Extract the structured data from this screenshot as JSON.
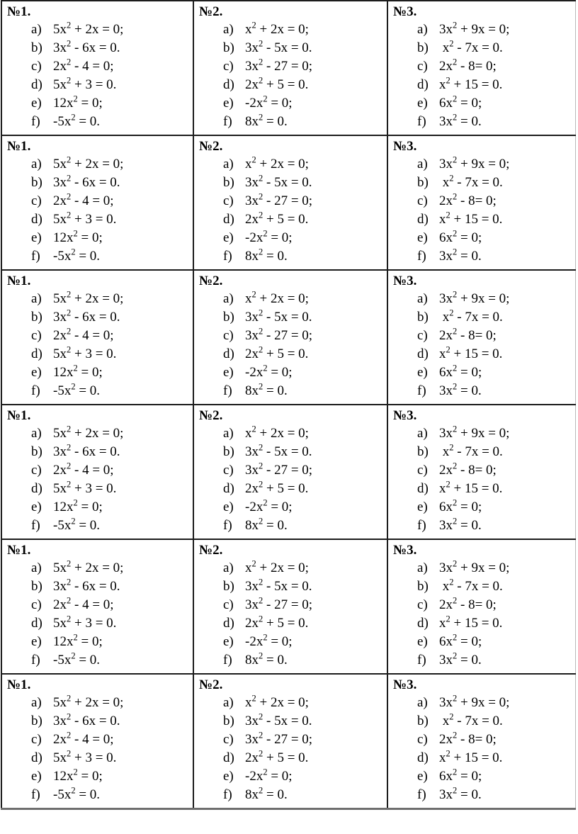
{
  "worksheet": {
    "repeat_rows": 6,
    "problems": [
      {
        "number": "№1.",
        "items": [
          {
            "label": "a)",
            "equation": "5x^2 + 2x = 0;"
          },
          {
            "label": "b)",
            "equation": "3x^2 - 6x = 0."
          },
          {
            "label": "c)",
            "equation": "2x^2 - 4 = 0;"
          },
          {
            "label": "d)",
            "equation": "5x^2 + 3 = 0."
          },
          {
            "label": "e)",
            "equation": "12x^2 = 0;"
          },
          {
            "label": "f)",
            "equation": "-5x^2 = 0."
          }
        ]
      },
      {
        "number": "№2.",
        "items": [
          {
            "label": "a)",
            "equation": "x^2 + 2x = 0;"
          },
          {
            "label": "b)",
            "equation": "3x^2 - 5x = 0."
          },
          {
            "label": "c)",
            "equation": "3x^2 - 27 = 0;"
          },
          {
            "label": "d)",
            "equation": "2x^2 + 5 = 0."
          },
          {
            "label": "e)",
            "equation": "-2x^2 = 0;"
          },
          {
            "label": "f)",
            "equation": "8x^2 = 0."
          }
        ]
      },
      {
        "number": "№3.",
        "items": [
          {
            "label": "a)",
            "equation": "3x^2 + 9x = 0;"
          },
          {
            "label": "b)",
            "equation": " x^2 - 7x = 0."
          },
          {
            "label": "c)",
            "equation": "2x^2 - 8= 0;"
          },
          {
            "label": "d)",
            "equation": "x^2 + 15 = 0."
          },
          {
            "label": "e)",
            "equation": "6x^2 = 0;"
          },
          {
            "label": "f)",
            "equation": "3x^2 = 0."
          }
        ]
      }
    ]
  }
}
